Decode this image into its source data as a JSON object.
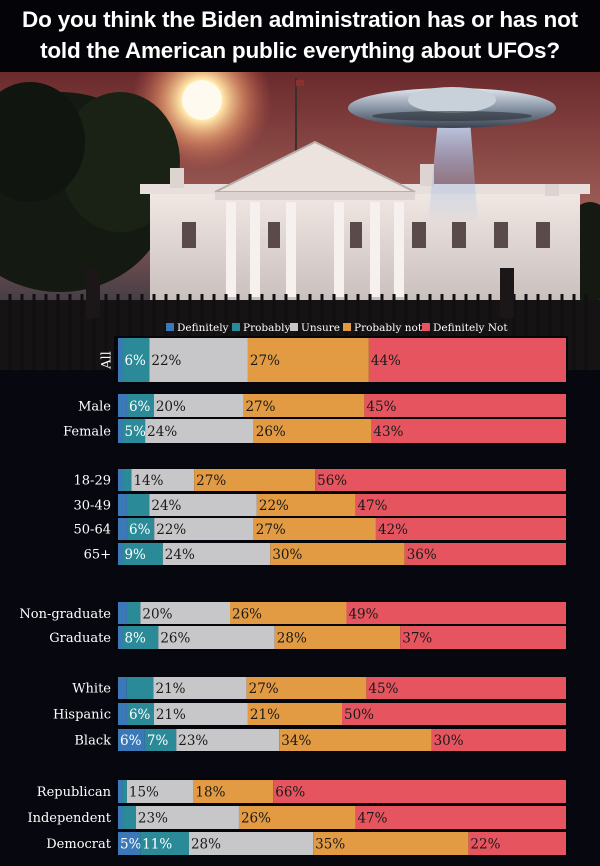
{
  "title_line1": "Do you think the Biden administration has or has not",
  "title_line2": "told the American public everything about UFOs?",
  "colors": {
    "definitely": "#3a78b8",
    "probably": "#2a8a98",
    "unsure": "#c7c7c9",
    "probably_not": "#e29a43",
    "definitely_not": "#e6555f"
  },
  "chart_data": {
    "type": "bar",
    "orientation": "horizontal",
    "stacked": true,
    "legend_position": "top",
    "series": [
      {
        "name": "Definitely",
        "key": "definitely"
      },
      {
        "name": "Probably",
        "key": "probably"
      },
      {
        "name": "Unsure",
        "key": "unsure"
      },
      {
        "name": "Probably not",
        "key": "probably_not"
      },
      {
        "name": "Definitely Not",
        "key": "definitely_not"
      }
    ],
    "rows": [
      {
        "label": "All",
        "values": [
          1,
          6,
          22,
          27,
          44
        ],
        "labels": [
          "",
          "6%",
          "22%",
          "27%",
          "44%"
        ]
      },
      {
        "label": "Male",
        "values": [
          2,
          6,
          20,
          27,
          45
        ],
        "labels": [
          "",
          "6%",
          "20%",
          "27%",
          "45%"
        ]
      },
      {
        "label": "Female",
        "values": [
          1,
          5,
          24,
          26,
          43
        ],
        "labels": [
          "",
          "5%",
          "24%",
          "26%",
          "43%"
        ]
      },
      {
        "label": "18-29",
        "values": [
          1,
          2,
          14,
          27,
          56
        ],
        "labels": [
          "",
          "",
          "14%",
          "27%",
          "56%"
        ]
      },
      {
        "label": "30-49",
        "values": [
          2,
          5,
          24,
          22,
          47
        ],
        "labels": [
          "",
          "",
          "24%",
          "22%",
          "47%"
        ]
      },
      {
        "label": "50-64",
        "values": [
          2,
          6,
          22,
          27,
          42
        ],
        "labels": [
          "",
          "6%",
          "22%",
          "27%",
          "42%"
        ]
      },
      {
        "label": "65+",
        "values": [
          1,
          9,
          24,
          30,
          36
        ],
        "labels": [
          "",
          "9%",
          "24%",
          "30%",
          "36%"
        ]
      },
      {
        "label": "Non-graduate",
        "values": [
          2,
          3,
          20,
          26,
          49
        ],
        "labels": [
          "",
          "",
          "20%",
          "26%",
          "49%"
        ]
      },
      {
        "label": "Graduate",
        "values": [
          1,
          8,
          26,
          28,
          37
        ],
        "labels": [
          "",
          "8%",
          "26%",
          "28%",
          "37%"
        ]
      },
      {
        "label": "White",
        "values": [
          2,
          6,
          21,
          27,
          45
        ],
        "labels": [
          "",
          "",
          "21%",
          "27%",
          "45%"
        ]
      },
      {
        "label": "Hispanic",
        "values": [
          2,
          6,
          21,
          21,
          50
        ],
        "labels": [
          "",
          "6%",
          "21%",
          "21%",
          "50%"
        ]
      },
      {
        "label": "Black",
        "values": [
          6,
          7,
          23,
          34,
          30
        ],
        "labels": [
          "6%",
          "7%",
          "23%",
          "34%",
          "30%"
        ]
      },
      {
        "label": "Republican",
        "values": [
          1,
          1,
          15,
          18,
          66
        ],
        "labels": [
          "",
          "",
          "15%",
          "18%",
          "66%"
        ]
      },
      {
        "label": "Independent",
        "values": [
          1,
          3,
          23,
          26,
          47
        ],
        "labels": [
          "",
          "",
          "23%",
          "26%",
          "47%"
        ]
      },
      {
        "label": "Democrat",
        "values": [
          5,
          11,
          28,
          35,
          22
        ],
        "labels": [
          "5%",
          "11%",
          "28%",
          "35%",
          "22%"
        ]
      }
    ]
  }
}
